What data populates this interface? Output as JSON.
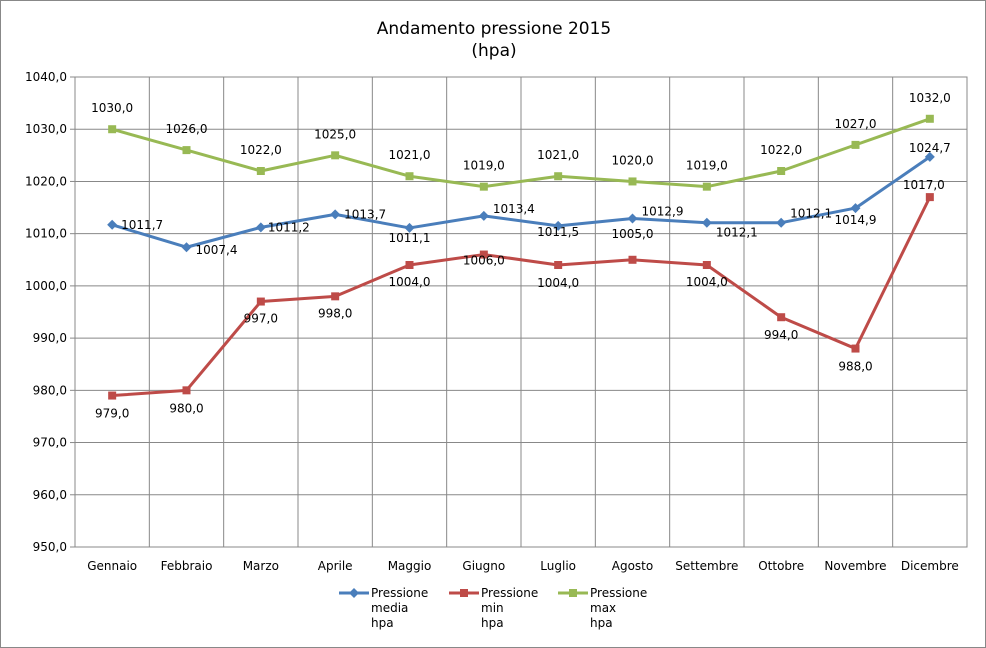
{
  "chart_data": {
    "type": "line",
    "title": "Andamento pressione 2015",
    "subtitle": "(hpa)",
    "categories": [
      "Gennaio",
      "Febbraio",
      "Marzo",
      "Aprile",
      "Maggio",
      "Giugno",
      "Luglio",
      "Agosto",
      "Settembre",
      "Ottobre",
      "Novembre",
      "Dicembre"
    ],
    "ylim": [
      950,
      1040
    ],
    "ytick_step": 10,
    "yticks": [
      "950,0",
      "960,0",
      "970,0",
      "980,0",
      "990,0",
      "1000,0",
      "1010,0",
      "1020,0",
      "1030,0",
      "1040,0"
    ],
    "grid": true,
    "legend_position": "bottom",
    "series": [
      {
        "name": "Pressione media hpa",
        "legend_lines": [
          "Pressione",
          "media",
          "hpa"
        ],
        "color": "#4a7ebb",
        "marker": "diamond",
        "values": [
          1011.7,
          1007.4,
          1011.2,
          1013.7,
          1011.1,
          1013.4,
          1011.5,
          1012.9,
          1012.1,
          1012.1,
          1014.9,
          1024.7
        ],
        "labels": [
          "1011,7",
          "1007,4",
          "1011,2",
          "1013,7",
          "1011,1",
          "1013,4",
          "1011,5",
          "1012,9",
          "1012,1",
          "1012,1",
          "1014,9",
          "1024,7"
        ]
      },
      {
        "name": "Pressione min hpa",
        "legend_lines": [
          "Pressione",
          "min",
          "hpa"
        ],
        "color": "#be4b48",
        "marker": "square",
        "values": [
          979,
          980,
          997,
          998,
          1004,
          1006,
          1004,
          1005,
          1004,
          994,
          988,
          1017
        ],
        "labels": [
          "979,0",
          "980,0",
          "997,0",
          "998,0",
          "1004,0",
          "1006,0",
          "1004,0",
          "1005,0",
          "1004,0",
          "994,0",
          "988,0",
          "1017,0"
        ]
      },
      {
        "name": "Pressione max hpa",
        "legend_lines": [
          "Pressione",
          "max",
          "hpa"
        ],
        "color": "#98b954",
        "marker": "square",
        "values": [
          1030,
          1026,
          1022,
          1025,
          1021,
          1019,
          1021,
          1020,
          1019,
          1022,
          1027,
          1032
        ],
        "labels": [
          "1030,0",
          "1026,0",
          "1022,0",
          "1025,0",
          "1021,0",
          "1019,0",
          "1021,0",
          "1020,0",
          "1019,0",
          "1022,0",
          "1027,0",
          "1032,0"
        ]
      }
    ]
  }
}
